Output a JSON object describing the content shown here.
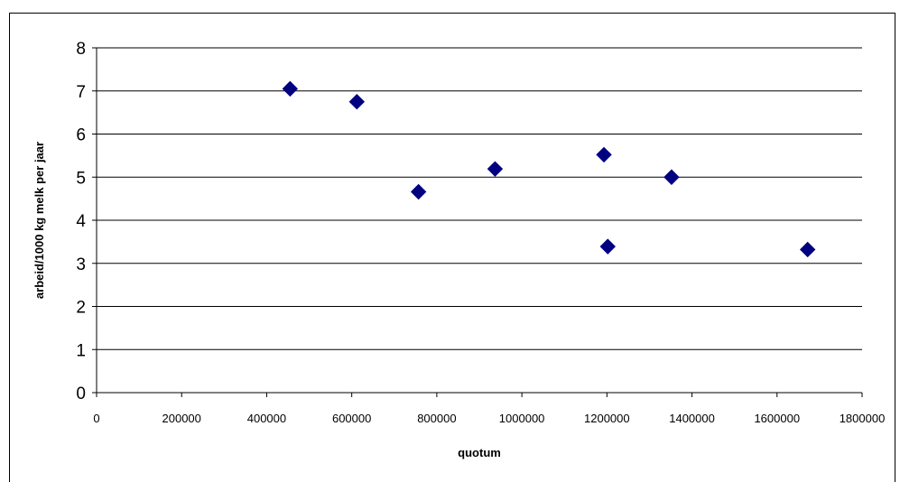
{
  "chart_data": {
    "type": "scatter",
    "xlabel": "quotum",
    "ylabel": "arbeid/1000 kg melk per jaar",
    "xlim": [
      0,
      1800000
    ],
    "ylim": [
      0,
      8
    ],
    "x_ticks": [
      "0",
      "200000",
      "400000",
      "600000",
      "800000",
      "1000000",
      "1200000",
      "1400000",
      "1600000",
      "1800000"
    ],
    "y_ticks": [
      "0",
      "1",
      "2",
      "3",
      "4",
      "5",
      "6",
      "7",
      "8"
    ],
    "grid": "horizontal",
    "marker_color": "#000080",
    "marker": "diamond",
    "points": [
      {
        "x": 455000,
        "y": 7.05
      },
      {
        "x": 612000,
        "y": 6.75
      },
      {
        "x": 757000,
        "y": 4.66
      },
      {
        "x": 937000,
        "y": 5.19
      },
      {
        "x": 1193000,
        "y": 5.52
      },
      {
        "x": 1202000,
        "y": 3.39
      },
      {
        "x": 1352000,
        "y": 5.0
      },
      {
        "x": 1672000,
        "y": 3.32
      }
    ]
  }
}
